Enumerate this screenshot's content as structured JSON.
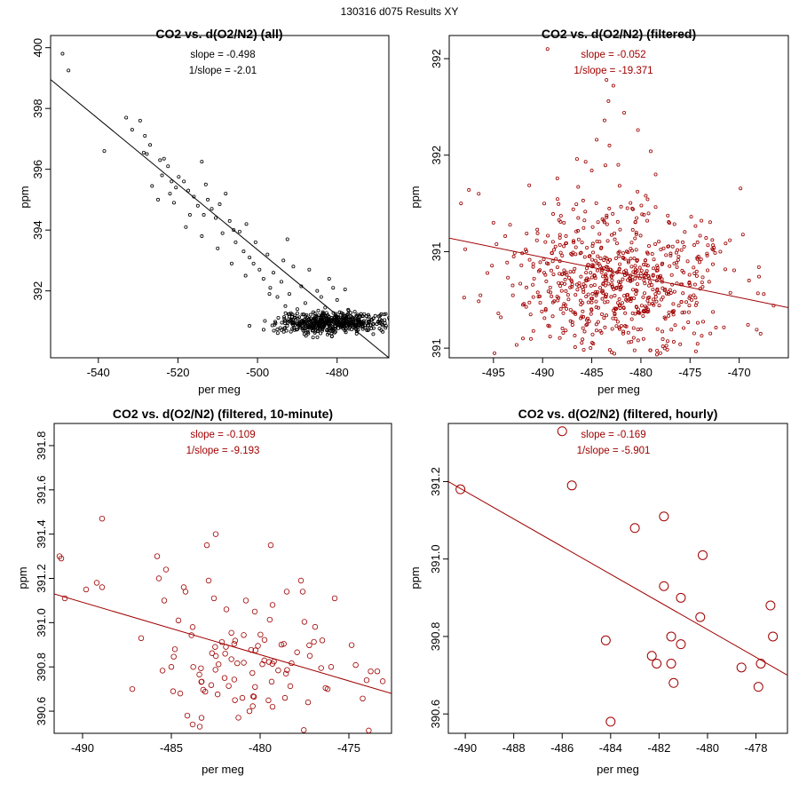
{
  "suptitle": "130316   d075   Results XY",
  "colors": {
    "black": "#000000",
    "red": "#a00000"
  },
  "chart_data": [
    {
      "type": "scatter",
      "title": "CO2 vs. d(O2/N2) (all)",
      "xlabel": "per meg",
      "ylabel": "ppm",
      "xlim": [
        -552,
        -467
      ],
      "ylim": [
        389.8,
        400.4
      ],
      "xticks": [
        -540,
        -520,
        -500,
        -480
      ],
      "yticks": [
        392,
        394,
        396,
        398,
        400
      ],
      "color": "black",
      "marker_radius": 1.6,
      "annotations": [
        "slope = -0.498",
        "1/slope = -2.01"
      ],
      "fit_line": {
        "x": [
          -552,
          -467
        ],
        "y": [
          398.95,
          389.8
        ]
      },
      "points": [
        [
          -549,
          399.8
        ],
        [
          -547.5,
          399.25
        ],
        [
          -538.5,
          396.6
        ],
        [
          -533,
          397.7
        ],
        [
          -531.5,
          397.3
        ],
        [
          -529.5,
          397.6
        ],
        [
          -528.3,
          397.1
        ],
        [
          -527,
          396.8
        ],
        [
          -528.6,
          396.55
        ],
        [
          -527.8,
          396.5
        ],
        [
          -524.5,
          396.3
        ],
        [
          -523.5,
          396.35
        ],
        [
          -524,
          395.8
        ],
        [
          -522.5,
          396.1
        ],
        [
          -521.6,
          395.6
        ],
        [
          -520.5,
          395.4
        ],
        [
          -521,
          394.9
        ],
        [
          -519.8,
          395.75
        ],
        [
          -518.5,
          395.6
        ],
        [
          -517.4,
          395.3
        ],
        [
          -516,
          395.1
        ],
        [
          -515,
          394.8
        ],
        [
          -514,
          396.25
        ],
        [
          -513,
          395.5
        ],
        [
          -512.5,
          395.0
        ],
        [
          -511.5,
          394.7
        ],
        [
          -510.5,
          394.4
        ],
        [
          -509.5,
          394.85
        ],
        [
          -508.8,
          393.9
        ],
        [
          -508,
          395.2
        ],
        [
          -507,
          394.3
        ],
        [
          -506,
          394.0
        ],
        [
          -505.5,
          393.6
        ],
        [
          -504.5,
          393.95
        ],
        [
          -503.5,
          393.3
        ],
        [
          -502.8,
          394.2
        ],
        [
          -502,
          393.1
        ],
        [
          -501,
          392.9
        ],
        [
          -500.5,
          393.6
        ],
        [
          -499.5,
          392.7
        ],
        [
          -498.5,
          392.4
        ],
        [
          -497.5,
          393.2
        ],
        [
          -496.8,
          392.1
        ],
        [
          -496,
          392.6
        ],
        [
          -495,
          391.8
        ],
        [
          -494,
          392.3
        ],
        [
          -493,
          391.5
        ],
        [
          -492.5,
          393.7
        ],
        [
          -492,
          391.9
        ],
        [
          -491,
          392.8
        ],
        [
          -490,
          391.4
        ],
        [
          -489,
          392.15
        ],
        [
          -488,
          391.6
        ],
        [
          -487,
          392.7
        ],
        [
          -486,
          391.3
        ],
        [
          -485,
          392.0
        ],
        [
          -484,
          391.8
        ],
        [
          -483,
          391.45
        ],
        [
          -482,
          392.4
        ],
        [
          -481,
          392.1
        ],
        [
          -480,
          391.7
        ],
        [
          -478,
          392.05
        ],
        [
          -518,
          394.1
        ],
        [
          -514,
          393.8
        ],
        [
          -510,
          393.4
        ],
        [
          -506.5,
          392.9
        ],
        [
          -503,
          392.5
        ],
        [
          -497,
          391.9
        ],
        [
          -493.5,
          393.0
        ],
        [
          -489.5,
          390.9
        ],
        [
          -525,
          395.0
        ],
        [
          -526.5,
          395.45
        ],
        [
          -522,
          395.2
        ],
        [
          -517,
          394.5
        ],
        [
          -513.5,
          394.5
        ]
      ],
      "cluster": {
        "x_center": -481,
        "y_center": 390.95,
        "x_spread": 7,
        "y_spread": 0.17,
        "count": 520,
        "seed": 7
      }
    },
    {
      "type": "scatter",
      "title": "CO2 vs. d(O2/N2) (filtered)",
      "xlabel": "per meg",
      "ylabel": "ppm",
      "xlim": [
        -499.5,
        -465
      ],
      "ylim": [
        390.45,
        392.12
      ],
      "xticks": [
        -495,
        -490,
        -485,
        -480,
        -475,
        -470
      ],
      "yticks": [
        390.5,
        391.0,
        391.5,
        392.0
      ],
      "color": "red",
      "marker_radius": 1.6,
      "annotations": [
        "slope = -0.052",
        "1/slope = -19.371"
      ],
      "fit_line": {
        "x": [
          -499.5,
          -465
        ],
        "y": [
          391.07,
          390.71
        ]
      },
      "points": [
        [
          -489.5,
          392.05
        ],
        [
          -483.5,
          391.89
        ],
        [
          -482.8,
          391.86
        ],
        [
          -483.3,
          391.78
        ],
        [
          -481.7,
          391.72
        ],
        [
          -483.7,
          391.68
        ],
        [
          -480.3,
          391.63
        ],
        [
          -484.5,
          391.58
        ],
        [
          -483.2,
          391.55
        ],
        [
          -479,
          391.52
        ],
        [
          -486.5,
          391.48
        ],
        [
          -482.3,
          391.45
        ],
        [
          -485,
          391.42
        ],
        [
          -488.5,
          391.38
        ],
        [
          -478.5,
          391.4
        ],
        [
          -496.5,
          391.3
        ],
        [
          -497.5,
          391.32
        ],
        [
          -498.3,
          391.25
        ],
        [
          -495,
          391.15
        ],
        [
          -493.8,
          391.08
        ],
        [
          -469,
          390.85
        ],
        [
          -467.5,
          390.78
        ],
        [
          -466.5,
          390.72
        ],
        [
          -468,
          390.92
        ],
        [
          -494.5,
          390.68
        ],
        [
          -492,
          390.55
        ],
        [
          -476,
          390.52
        ]
      ],
      "cluster": {
        "x_center": -482,
        "y_center": 390.85,
        "x_spread": 5.5,
        "y_spread": 0.18,
        "count": 700,
        "seed": 13
      }
    },
    {
      "type": "scatter",
      "title": "CO2 vs. d(O2/N2) (filtered, 10-minute)",
      "xlabel": "per meg",
      "ylabel": "ppm",
      "xlim": [
        -491.6,
        -472.6
      ],
      "ylim": [
        390.5,
        391.9
      ],
      "xticks": [
        -490,
        -485,
        -480,
        -475
      ],
      "yticks": [
        390.6,
        390.8,
        391.0,
        391.2,
        391.4,
        391.6,
        391.8
      ],
      "color": "red",
      "marker_radius": 2.8,
      "annotations": [
        "slope = -0.109",
        "1/slope = -9.193"
      ],
      "fit_line": {
        "x": [
          -491.6,
          -472.6
        ],
        "y": [
          391.13,
          390.68
        ]
      },
      "points": [
        [
          -491.3,
          391.3
        ],
        [
          -491.2,
          391.29
        ],
        [
          -491,
          391.11
        ],
        [
          -488.9,
          391.47
        ],
        [
          -489.2,
          391.18
        ],
        [
          -488.9,
          391.16
        ],
        [
          -489.8,
          391.15
        ],
        [
          -487.2,
          390.7
        ],
        [
          -486.7,
          390.93
        ],
        [
          -485.8,
          391.3
        ],
        [
          -485.7,
          391.2
        ],
        [
          -485.3,
          391.24
        ],
        [
          -485.4,
          391.1
        ],
        [
          -484.3,
          391.16
        ],
        [
          -484.2,
          391.14
        ],
        [
          -484.8,
          390.88
        ],
        [
          -484.6,
          391.01
        ],
        [
          -483.8,
          390.98
        ],
        [
          -482.5,
          391.4
        ],
        [
          -483.0,
          391.35
        ],
        [
          -482.9,
          391.19
        ],
        [
          -482.6,
          391.11
        ],
        [
          -481.9,
          391.06
        ],
        [
          -480.8,
          391.1
        ],
        [
          -480.3,
          391.05
        ],
        [
          -479.4,
          391.35
        ],
        [
          -479.3,
          391.08
        ],
        [
          -478.5,
          391.14
        ],
        [
          -477.7,
          391.19
        ],
        [
          -477.6,
          391.14
        ],
        [
          -476.5,
          390.92
        ],
        [
          -475.8,
          391.11
        ],
        [
          -477.2,
          390.85
        ],
        [
          -476.0,
          390.8
        ],
        [
          -474.0,
          390.74
        ],
        [
          -473.4,
          390.78
        ],
        [
          -484.1,
          390.58
        ],
        [
          -483.8,
          390.54
        ],
        [
          -483.4,
          390.53
        ],
        [
          -483.3,
          390.57
        ],
        [
          -484.5,
          390.68
        ],
        [
          -484.9,
          390.69
        ],
        [
          -480.6,
          390.6
        ],
        [
          -481.0,
          390.66
        ],
        [
          -479.3,
          390.62
        ],
        [
          -478.6,
          390.66
        ],
        [
          -477.3,
          390.64
        ],
        [
          -476.2,
          390.7
        ],
        [
          -485.0,
          390.8
        ],
        [
          -482.0,
          390.75
        ]
      ],
      "cluster": {
        "x_center": -480.5,
        "y_center": 390.8,
        "x_spread": 2.8,
        "y_spread": 0.11,
        "count": 70,
        "seed": 29
      }
    },
    {
      "type": "scatter",
      "title": "CO2 vs. d(O2/N2) (filtered, hourly)",
      "xlabel": "per meg",
      "ylabel": "ppm",
      "xlim": [
        -490.7,
        -476.7
      ],
      "ylim": [
        390.55,
        391.35
      ],
      "xticks": [
        -490,
        -488,
        -486,
        -484,
        -482,
        -480,
        -478
      ],
      "yticks": [
        390.6,
        390.8,
        391.0,
        391.2
      ],
      "color": "red",
      "marker_radius": 5,
      "annotations": [
        "slope = -0.169",
        "1/slope = -5.901"
      ],
      "fit_line": {
        "x": [
          -490.7,
          -476.7
        ],
        "y": [
          391.2,
          390.7
        ]
      },
      "points": [
        [
          -490.2,
          391.18
        ],
        [
          -486.0,
          391.33
        ],
        [
          -485.6,
          391.19
        ],
        [
          -483.0,
          391.08
        ],
        [
          -481.8,
          391.11
        ],
        [
          -480.2,
          391.01
        ],
        [
          -481.8,
          390.93
        ],
        [
          -481.1,
          390.9
        ],
        [
          -477.4,
          390.88
        ],
        [
          -480.3,
          390.85
        ],
        [
          -481.5,
          390.8
        ],
        [
          -477.3,
          390.8
        ],
        [
          -481.1,
          390.78
        ],
        [
          -484.2,
          390.79
        ],
        [
          -482.3,
          390.75
        ],
        [
          -482.1,
          390.73
        ],
        [
          -481.5,
          390.73
        ],
        [
          -478.6,
          390.72
        ],
        [
          -477.8,
          390.73
        ],
        [
          -481.4,
          390.68
        ],
        [
          -477.9,
          390.67
        ],
        [
          -484.0,
          390.58
        ]
      ]
    }
  ]
}
